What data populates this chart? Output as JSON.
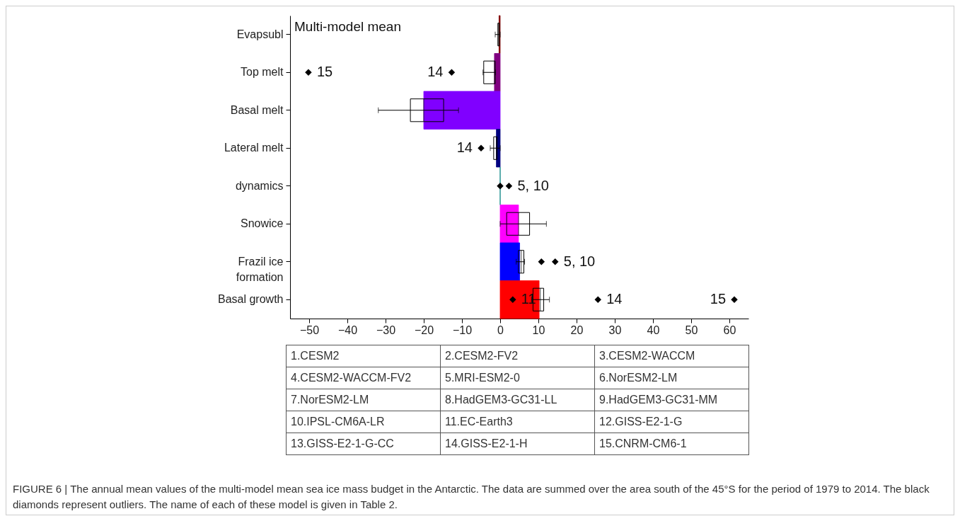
{
  "chart_data": {
    "type": "bar",
    "orientation": "horizontal",
    "title": "Multi-model mean",
    "categories": [
      "Evapsubl",
      "Top melt",
      "Basal melt",
      "Lateral melt",
      "dynamics",
      "Snowice",
      "Frazil ice formation",
      "Basal growth"
    ],
    "series": [
      {
        "values": [
          -0.3,
          -1.5,
          -20,
          -1,
          0,
          4.8,
          5.1,
          10.2
        ],
        "colors": [
          "#800000",
          "#800080",
          "#8000ff",
          "#000080",
          "#008080",
          "#ff00ff",
          "#0000ff",
          "#ff0000"
        ]
      },
      {
        "type": "box",
        "boxes": [
          {
            "low": -1.3,
            "q1": -0.6,
            "median": -0.4,
            "q3": -0.2,
            "high": 0
          },
          {
            "low": -4.5,
            "q1": -4.3,
            "median": -1.5,
            "q3": -1.3,
            "high": -1.2
          },
          {
            "low": -31.9,
            "q1": -23.5,
            "median": -20,
            "q3": -14.8,
            "high": -10.9
          },
          {
            "low": -2.6,
            "q1": -1.7,
            "median": -1,
            "q3": -0.8,
            "high": 0
          },
          null,
          {
            "low": 0,
            "q1": 1.7,
            "median": 4.8,
            "q3": 7.7,
            "high": 12.1
          },
          {
            "low": 4.2,
            "q1": 4.8,
            "median": 5.5,
            "q3": 6.2,
            "high": 6.4
          },
          {
            "low": 8.2,
            "q1": 8.6,
            "median": 10.5,
            "q3": 11.4,
            "high": 12.9
          }
        ]
      },
      {
        "type": "scatter",
        "color": "#000000",
        "x": [
          "Top melt",
          "Top melt",
          "Lateral melt",
          "dynamics",
          "dynamics",
          "Frazil ice formation",
          "Frazil ice formation",
          "Basal growth",
          "Basal growth",
          "Basal growth"
        ],
        "values": [
          -50.2,
          -12.7,
          -5,
          0,
          2.3,
          10.8,
          14.4,
          3.3,
          25.6,
          61.3
        ]
      }
    ],
    "xlim": [
      -55,
      65
    ],
    "xticks": [
      -50,
      -40,
      -30,
      -20,
      -10,
      0,
      10,
      20,
      30,
      40,
      50,
      60
    ],
    "marker": "diamond",
    "grid": false,
    "annotations": [
      {
        "text": "15",
        "x": -50.2,
        "y": "Top melt"
      },
      {
        "text": "14",
        "x": -12.7,
        "y": "Top melt"
      },
      {
        "text": "14",
        "x": -5,
        "y": "Lateral melt"
      },
      {
        "text": "5, 10",
        "x": 2.3,
        "y": "dynamics"
      },
      {
        "text": "5, 10",
        "x": 14.4,
        "y": "Frazil ice formation"
      },
      {
        "text": "11",
        "x": 3.3,
        "y": "Basal growth"
      },
      {
        "text": "14",
        "x": 25.6,
        "y": "Basal growth"
      },
      {
        "text": "15",
        "x": 61.3,
        "y": "Basal growth"
      },
      "1.CESM2",
      "2.CESM2-FV2",
      "3.CESM2-WACCM",
      "4.CESM2-WACCM-FV2",
      "5.MRI-ESM2-0",
      "6.NorESM2-LM",
      "7.NorESM2-LM",
      "8.HadGEM3-GC31-LL",
      "9.HadGEM3-GC31-MM",
      "10.IPSL-CM6A-LR",
      "11.EC-Earth3",
      "12.GISS-E2-1-G",
      "13.GISS-E2-1-G-CC",
      "14.GISS-E2-1-H",
      "15.CNRM-CM6-1",
      "FIGURE 6 | The annual mean values of the multi-model mean sea ice mass budget in the Antarctic. The data are summed over the area south of the 45°S for the period of 1979 to 2014. The black diamonds represent outliers. The name of each of these model is given in Table 2."
    ]
  }
}
